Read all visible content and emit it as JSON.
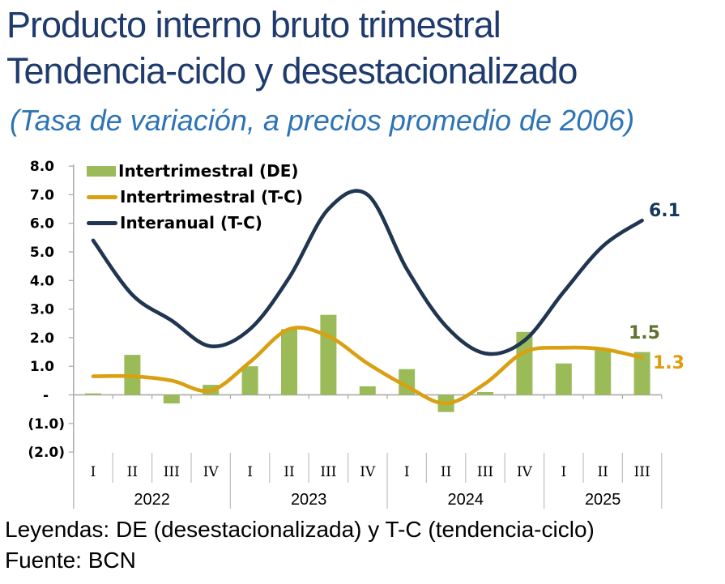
{
  "header": {
    "title_line1": "Producto interno bruto trimestral",
    "title_line2": "Tendencia-ciclo y desestacionalizado",
    "subtitle": "(Tasa de variación, a precios promedio de 2006)"
  },
  "footer": {
    "legend_note": "Leyendas: DE (desestacionalizada) y T-C (tendencia-ciclo)",
    "source": "Fuente: BCN"
  },
  "chart_data": {
    "type": "combo-bar-line",
    "grid": false,
    "legend_position": "top-left",
    "x_categories": {
      "quarters": [
        "I",
        "II",
        "III",
        "IV",
        "I",
        "II",
        "III",
        "IV",
        "I",
        "II",
        "III",
        "IV",
        "I",
        "II",
        "III"
      ],
      "years": [
        {
          "label": "2022",
          "quarters": 4
        },
        {
          "label": "2023",
          "quarters": 4
        },
        {
          "label": "2024",
          "quarters": 4
        },
        {
          "label": "2025",
          "quarters": 3
        }
      ]
    },
    "y_axis": {
      "range": [
        -2,
        8
      ],
      "ticks": [
        {
          "label": "8.0",
          "value": 8
        },
        {
          "label": "7.0",
          "value": 7
        },
        {
          "label": "6.0",
          "value": 6
        },
        {
          "label": "5.0",
          "value": 5
        },
        {
          "label": "4.0",
          "value": 4
        },
        {
          "label": "3.0",
          "value": 3
        },
        {
          "label": "2.0",
          "value": 2
        },
        {
          "label": "1.0",
          "value": 1
        },
        {
          "label": "-",
          "value": 0
        },
        {
          "label": "(1.0)",
          "value": -1
        },
        {
          "label": "(2.0)",
          "value": -2
        }
      ]
    },
    "series": [
      {
        "name": "Intertrimestral (DE)",
        "type": "bar",
        "color": "#9BBB59",
        "label_color": "#5F7231",
        "end_label": "1.5",
        "values": [
          0.05,
          1.4,
          -0.3,
          0.35,
          1.0,
          2.3,
          2.8,
          0.3,
          0.9,
          -0.6,
          0.1,
          2.2,
          1.1,
          1.6,
          1.5
        ]
      },
      {
        "name": "Intertrimestral (T-C)",
        "type": "line",
        "color": "#D9A012",
        "label_color": "#E09C09",
        "end_label": "1.3",
        "values": [
          0.65,
          0.65,
          0.5,
          0.15,
          1.15,
          2.3,
          2.05,
          1.1,
          0.3,
          -0.3,
          0.4,
          1.5,
          1.65,
          1.6,
          1.3
        ]
      },
      {
        "name": "Interanual (T-C)",
        "type": "line",
        "color": "#1F3550",
        "label_color": "#17375D",
        "end_label": "6.1",
        "values": [
          5.4,
          3.5,
          2.6,
          1.7,
          2.3,
          4.1,
          6.5,
          7.0,
          4.4,
          2.4,
          1.45,
          1.9,
          3.6,
          5.2,
          6.1
        ]
      }
    ]
  }
}
